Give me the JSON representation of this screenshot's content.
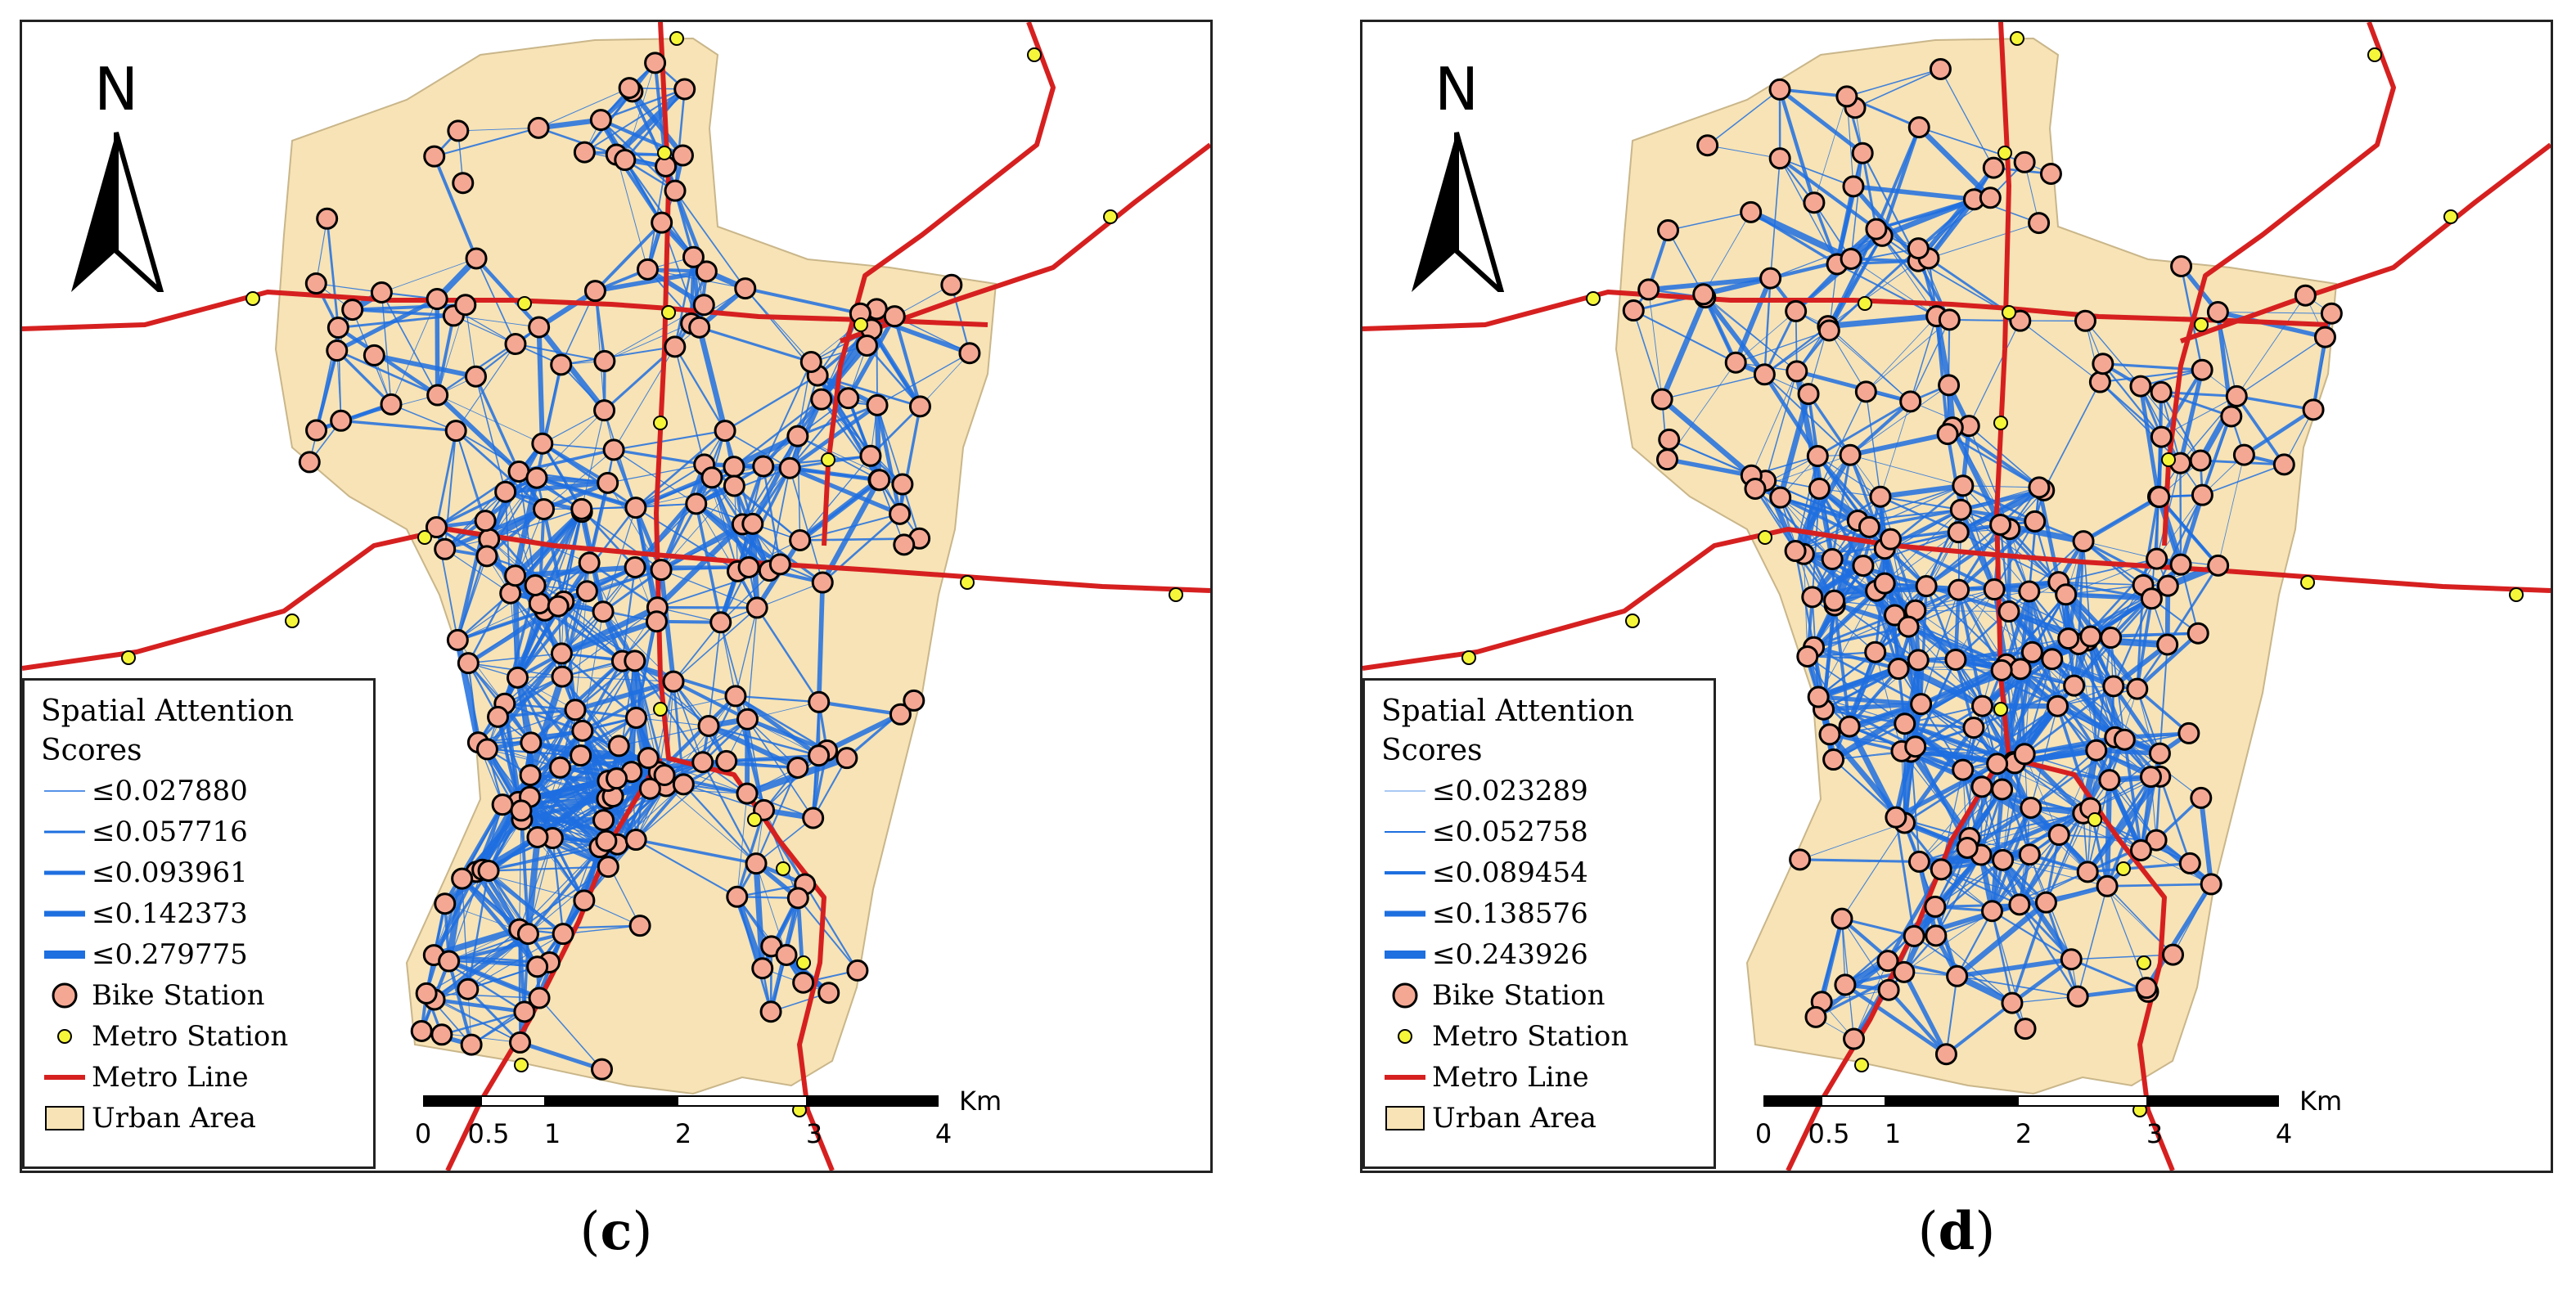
{
  "panels": [
    {
      "id": "c",
      "caption_letter": "c",
      "north_label": "N",
      "legend": {
        "title_line1": "Spatial Attention",
        "title_line2": "Scores",
        "thresholds": [
          "≤0.027880",
          "≤0.057716",
          "≤0.093961",
          "≤0.142373",
          "≤0.279775"
        ],
        "bike_station": "Bike Station",
        "metro_station": "Metro Station",
        "metro_line": "Metro Line",
        "urban_area": "Urban Area"
      },
      "scale": {
        "unit": "Km",
        "ticks": [
          "0",
          "0.5",
          "1",
          "2",
          "3",
          "4"
        ]
      }
    },
    {
      "id": "d",
      "caption_letter": "d",
      "north_label": "N",
      "legend": {
        "title_line1": "Spatial Attention",
        "title_line2": "Scores",
        "thresholds": [
          "≤0.023289",
          "≤0.052758",
          "≤0.089454",
          "≤0.138576",
          "≤0.243926"
        ],
        "bike_station": "Bike Station",
        "metro_station": "Metro Station",
        "metro_line": "Metro Line",
        "urban_area": "Urban Area"
      },
      "scale": {
        "unit": "Km",
        "ticks": [
          "0",
          "0.5",
          "1",
          "2",
          "3",
          "4"
        ]
      }
    }
  ],
  "colors": {
    "urban_area": "#f7e3b5",
    "metro_line": "#d62020",
    "bike_station_fill": "#f4a893",
    "metro_station_fill": "#f5f53a",
    "edge": "#1e6fe0"
  },
  "icons": [
    "north-arrow-icon"
  ]
}
